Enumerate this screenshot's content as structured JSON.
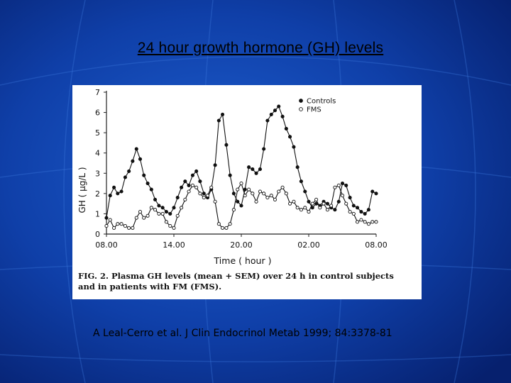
{
  "slide": {
    "title": "24 hour growth hormone (GH) levels",
    "citation": "A Leal-Cerro et al. J Clin Endocrinol Metab 1999; 84:3378-81",
    "background_color": "#0a2d8c"
  },
  "figure": {
    "caption_lines": [
      "FIG. 2. Plasma GH levels (mean + SEM) over 24 h in control subjects",
      "and in patients with FM (FMS)."
    ]
  },
  "chart_data": {
    "type": "line",
    "xlabel": "Time ( hour )",
    "ylabel": "GH ( μg/L )",
    "xlim": [
      0,
      24
    ],
    "ylim": [
      0,
      7
    ],
    "x_tick_values": [
      0,
      6,
      12,
      18,
      24
    ],
    "x_tick_labels": [
      "08.00",
      "14.00",
      "20.00",
      "02.00",
      "08.00"
    ],
    "y_tick_values": [
      0,
      1,
      2,
      3,
      4,
      5,
      6,
      7
    ],
    "y_tick_labels": [
      "0",
      "1",
      "2",
      "3",
      "4",
      "5",
      "6",
      "7"
    ],
    "grid": false,
    "legend_position": "top-right",
    "x": [
      0.0,
      0.33,
      0.67,
      1.0,
      1.33,
      1.67,
      2.0,
      2.33,
      2.67,
      3.0,
      3.33,
      3.67,
      4.0,
      4.33,
      4.67,
      5.0,
      5.33,
      5.67,
      6.0,
      6.33,
      6.67,
      7.0,
      7.33,
      7.67,
      8.0,
      8.33,
      8.67,
      9.0,
      9.33,
      9.67,
      10.0,
      10.33,
      10.67,
      11.0,
      11.33,
      11.67,
      12.0,
      12.33,
      12.67,
      13.0,
      13.33,
      13.67,
      14.0,
      14.33,
      14.67,
      15.0,
      15.33,
      15.67,
      16.0,
      16.33,
      16.67,
      17.0,
      17.33,
      17.67,
      18.0,
      18.33,
      18.67,
      19.0,
      19.33,
      19.67,
      20.0,
      20.33,
      20.67,
      21.0,
      21.33,
      21.67,
      22.0,
      22.33,
      22.67,
      23.0,
      23.33,
      23.67,
      24.0
    ],
    "series": [
      {
        "name": "Controls",
        "marker": "filled-circle",
        "values": [
          0.8,
          1.9,
          2.3,
          2.0,
          2.1,
          2.8,
          3.1,
          3.6,
          4.2,
          3.7,
          2.9,
          2.5,
          2.2,
          1.7,
          1.4,
          1.3,
          1.1,
          1.0,
          1.3,
          1.8,
          2.3,
          2.6,
          2.4,
          2.9,
          3.1,
          2.6,
          2.0,
          1.8,
          2.2,
          3.4,
          5.6,
          5.9,
          4.4,
          2.9,
          2.0,
          1.6,
          1.4,
          2.2,
          3.3,
          3.2,
          3.0,
          3.2,
          4.2,
          5.6,
          5.9,
          6.1,
          6.3,
          5.8,
          5.2,
          4.8,
          4.3,
          3.3,
          2.6,
          2.1,
          1.6,
          1.3,
          1.5,
          1.4,
          1.6,
          1.5,
          1.3,
          1.2,
          1.6,
          2.5,
          2.4,
          1.8,
          1.4,
          1.3,
          1.1,
          1.0,
          1.2,
          2.1,
          2.0
        ]
      },
      {
        "name": "FMS",
        "marker": "open-circle",
        "values": [
          0.4,
          0.7,
          0.3,
          0.5,
          0.5,
          0.4,
          0.3,
          0.3,
          0.8,
          1.1,
          0.8,
          0.9,
          1.3,
          1.2,
          1.0,
          1.0,
          0.6,
          0.4,
          0.3,
          0.9,
          1.3,
          1.7,
          2.1,
          2.4,
          2.3,
          2.0,
          1.8,
          1.9,
          2.3,
          1.6,
          0.5,
          0.3,
          0.3,
          0.5,
          1.2,
          2.2,
          2.5,
          1.9,
          2.2,
          2.0,
          1.6,
          2.1,
          2.0,
          1.8,
          1.9,
          1.7,
          2.1,
          2.3,
          2.0,
          1.5,
          1.6,
          1.3,
          1.2,
          1.3,
          1.1,
          1.5,
          1.7,
          1.3,
          1.5,
          1.2,
          1.4,
          2.3,
          2.4,
          1.9,
          1.5,
          1.1,
          1.0,
          0.6,
          0.7,
          0.6,
          0.5,
          0.6,
          0.6
        ]
      }
    ]
  }
}
